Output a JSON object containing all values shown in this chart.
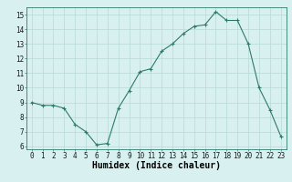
{
  "x": [
    0,
    1,
    2,
    3,
    4,
    5,
    6,
    7,
    8,
    9,
    10,
    11,
    12,
    13,
    14,
    15,
    16,
    17,
    18,
    19,
    20,
    21,
    22,
    23
  ],
  "y": [
    9.0,
    8.8,
    8.8,
    8.6,
    7.5,
    7.0,
    6.1,
    6.2,
    8.6,
    9.8,
    11.1,
    11.3,
    12.5,
    13.0,
    13.7,
    14.2,
    14.3,
    15.2,
    14.6,
    14.6,
    13.0,
    10.0,
    8.5,
    6.7
  ],
  "xlabel": "Humidex (Indice chaleur)",
  "ylim": [
    5.8,
    15.5
  ],
  "xlim": [
    -0.5,
    23.5
  ],
  "yticks": [
    6,
    7,
    8,
    9,
    10,
    11,
    12,
    13,
    14,
    15
  ],
  "xticks": [
    0,
    1,
    2,
    3,
    4,
    5,
    6,
    7,
    8,
    9,
    10,
    11,
    12,
    13,
    14,
    15,
    16,
    17,
    18,
    19,
    20,
    21,
    22,
    23
  ],
  "line_color": "#2d7a6e",
  "marker_color": "#2d7a6e",
  "bg_color": "#d9f0f0",
  "grid_color": "#b8d8d8",
  "tick_label_fontsize": 5.5,
  "xlabel_fontsize": 7
}
